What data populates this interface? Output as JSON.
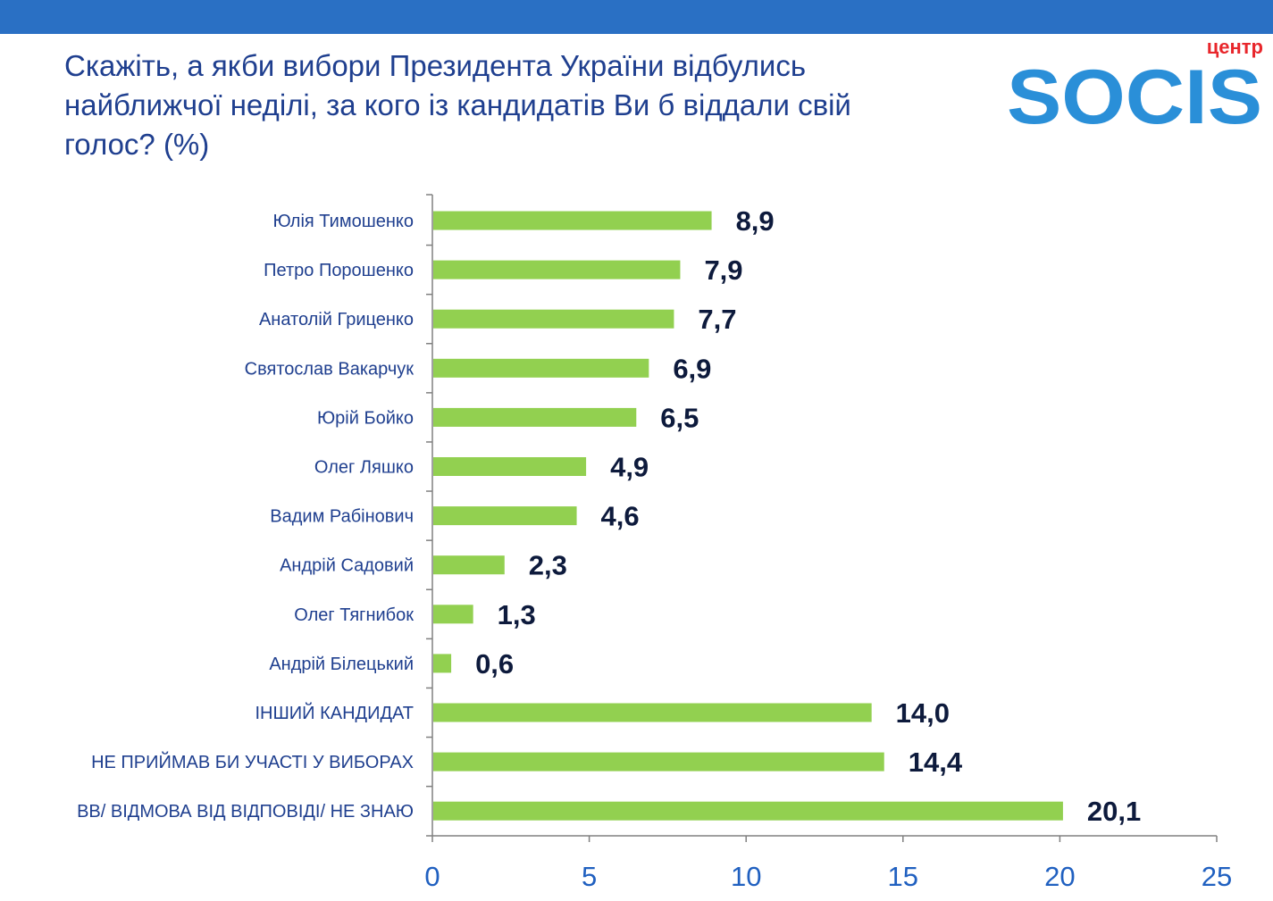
{
  "header": {
    "title": "Скажіть, а якби вибори Президента України відбулись найближчої неділі, за кого із кандидатів Ви б віддали свій голос? (%)"
  },
  "logo": {
    "top_text": "центр",
    "main_text": "SOCIS",
    "colors": {
      "main": "#2a8fd8",
      "top": "#e8262b"
    }
  },
  "colors": {
    "band": "#2a70c4",
    "bar": "#92d050",
    "axis": "#808080",
    "category_text": "#1f3f8f",
    "value_text": "#0d1a3c",
    "tick_text": "#2060c0"
  },
  "chart_data": {
    "type": "bar",
    "orientation": "horizontal",
    "title": "Скажіть, а якби вибори Президента України відбулись найближчої неділі, за кого із кандидатів Ви б віддали свій голос? (%)",
    "categories": [
      "Юлія Тимошенко",
      "Петро Порошенко",
      "Анатолій Гриценко",
      "Святослав Вакарчук",
      "Юрій Бойко",
      "Олег Ляшко",
      "Вадим Рабінович",
      "Андрій Садовий",
      "Олег Тягнибок",
      "Андрій Білецький",
      "ІНШИЙ КАНДИДАТ",
      "НЕ ПРИЙМАВ БИ УЧАСТІ У ВИБОРАХ",
      "ВВ/ ВІДМОВА ВІД ВІДПОВІДІ/ НЕ ЗНАЮ"
    ],
    "values": [
      8.9,
      7.9,
      7.7,
      6.9,
      6.5,
      4.9,
      4.6,
      2.3,
      1.3,
      0.6,
      14.0,
      14.4,
      20.1
    ],
    "value_labels": [
      "8,9",
      "7,9",
      "7,7",
      "6,9",
      "6,5",
      "4,9",
      "4,6",
      "2,3",
      "1,3",
      "0,6",
      "14,0",
      "14,4",
      "20,1"
    ],
    "xlim": [
      0,
      25
    ],
    "x_ticks": [
      0,
      5,
      10,
      15,
      20,
      25
    ],
    "x_tick_labels": [
      "0",
      "5",
      "10",
      "15",
      "20",
      "25"
    ],
    "grid": false,
    "legend": "none"
  }
}
